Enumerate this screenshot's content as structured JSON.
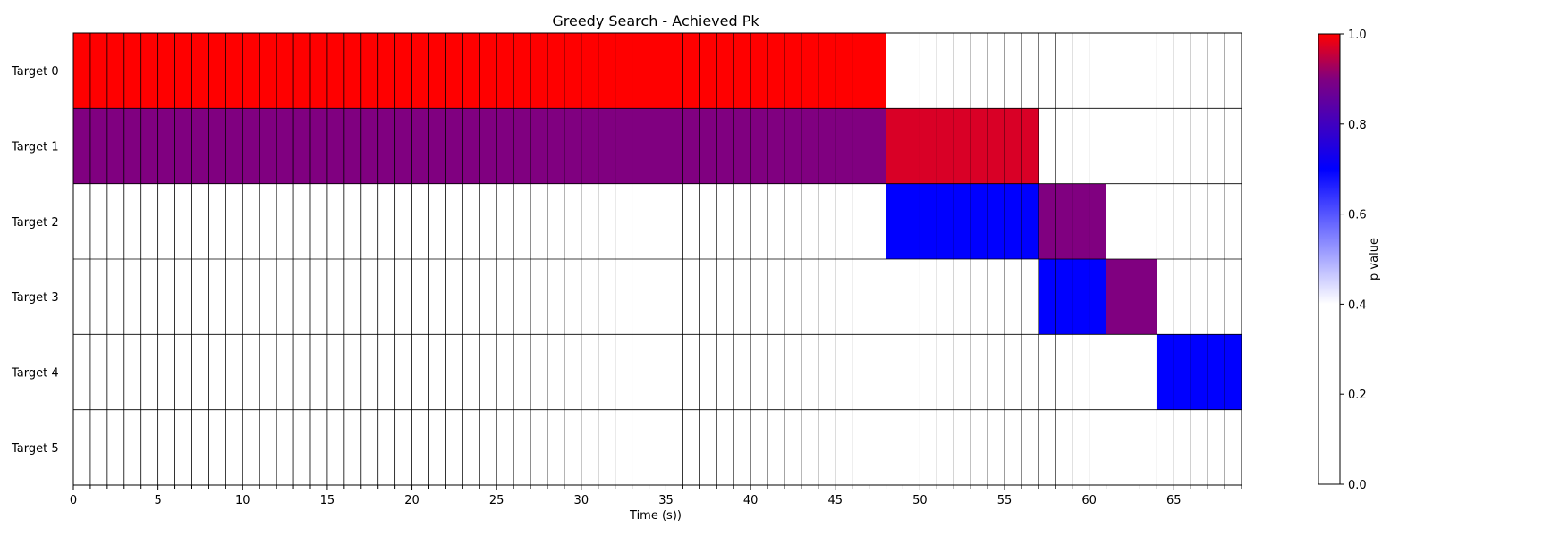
{
  "chart_data": {
    "type": "heatmap",
    "title": "Greedy Search - Achieved Pk",
    "xlabel": "Time (s))",
    "ylabel": "",
    "xlim": [
      0,
      69
    ],
    "x_ticks": [
      0,
      5,
      10,
      15,
      20,
      25,
      30,
      35,
      40,
      45,
      50,
      55,
      60,
      65
    ],
    "rows": [
      "Target 0",
      "Target 1",
      "Target 2",
      "Target 3",
      "Target 4",
      "Target 5"
    ],
    "cells": [
      {
        "row": 0,
        "start": 0,
        "end": 48,
        "value": 1.0
      },
      {
        "row": 1,
        "start": 0,
        "end": 48,
        "value": 0.9
      },
      {
        "row": 1,
        "start": 48,
        "end": 57,
        "value": 0.97
      },
      {
        "row": 2,
        "start": 48,
        "end": 57,
        "value": 0.7
      },
      {
        "row": 2,
        "start": 57,
        "end": 61,
        "value": 0.9
      },
      {
        "row": 3,
        "start": 57,
        "end": 61,
        "value": 0.7
      },
      {
        "row": 3,
        "start": 61,
        "end": 64,
        "value": 0.9
      },
      {
        "row": 4,
        "start": 64,
        "end": 69,
        "value": 0.7
      }
    ],
    "grid": true,
    "colorbar": {
      "label": "p value",
      "range": [
        0.0,
        1.0
      ],
      "ticks": [
        "0.0",
        "0.2",
        "0.4",
        "0.6",
        "0.8",
        "1.0"
      ],
      "stops": [
        {
          "value": 0.0,
          "color": "#ffffff"
        },
        {
          "value": 0.4,
          "color": "#ffffff"
        },
        {
          "value": 0.7,
          "color": "#0000ff"
        },
        {
          "value": 0.9,
          "color": "#800080"
        },
        {
          "value": 1.0,
          "color": "#ff0000"
        }
      ]
    }
  }
}
